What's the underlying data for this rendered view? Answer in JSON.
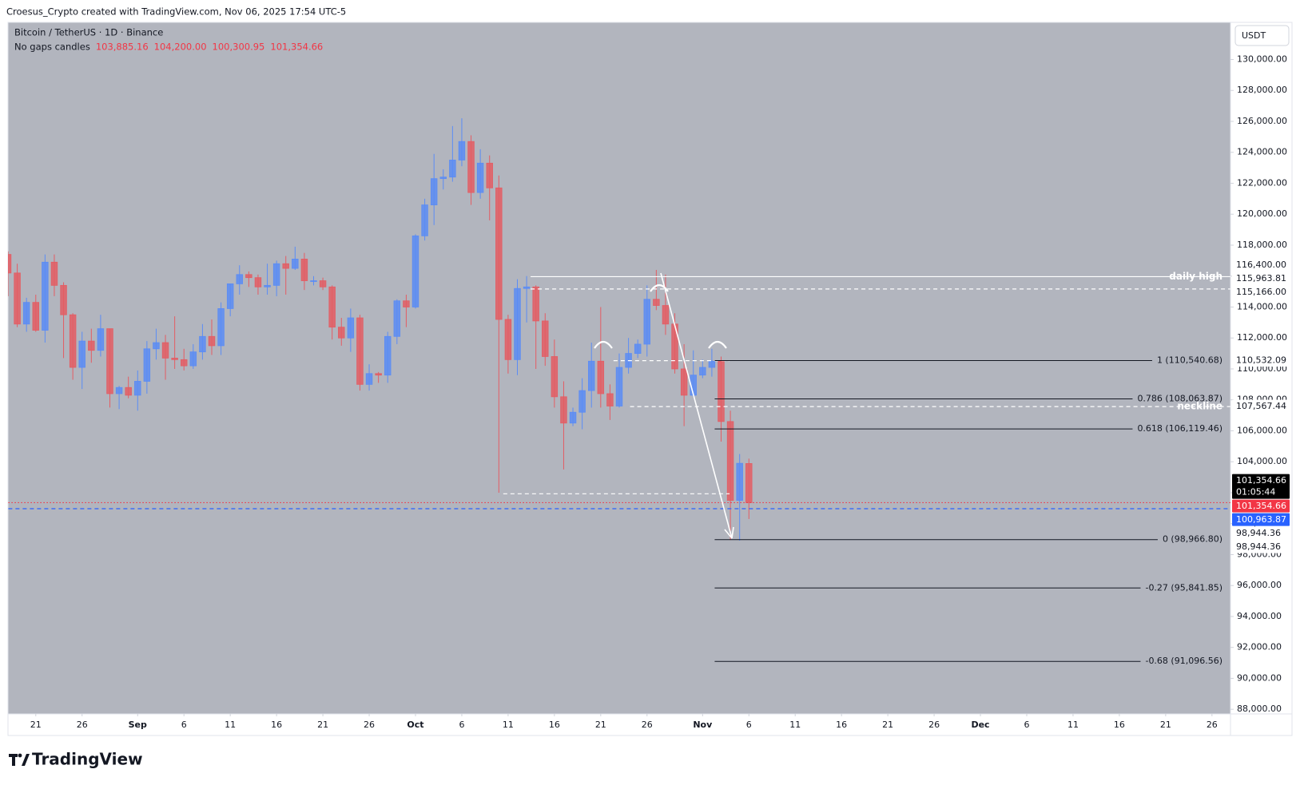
{
  "header": {
    "title": "Croesus_Crypto created with TradingView.com, Nov 06, 2025 17:54 UTC-5"
  },
  "footer": {
    "brand": "TradingView"
  },
  "chart_data": {
    "type": "candlestick",
    "symbol": "Bitcoin / TetherUS · 1D · Binance",
    "legend_label": "No gaps candles",
    "legend_values": [
      "103,885.16",
      "104,200.00",
      "100,300.95",
      "101,354.66"
    ],
    "currency": "USDT",
    "background": "#b2b5be",
    "up_color": "#5b8cf5",
    "down_color": "#e35d64",
    "dates": [
      "Aug 18",
      "Aug 19",
      "Aug 20",
      "Aug 21",
      "Aug 22",
      "Aug 23",
      "Aug 24",
      "Aug 25",
      "Aug 26",
      "Aug 27",
      "Aug 28",
      "Aug 29",
      "Aug 30",
      "Aug 31",
      "Sep 1",
      "Sep 2",
      "Sep 3",
      "Sep 4",
      "Sep 5",
      "Sep 6",
      "Sep 7",
      "Sep 8",
      "Sep 9",
      "Sep 10",
      "Sep 11",
      "Sep 12",
      "Sep 13",
      "Sep 14",
      "Sep 15",
      "Sep 16",
      "Sep 17",
      "Sep 18",
      "Sep 19",
      "Sep 20",
      "Sep 21",
      "Sep 22",
      "Sep 23",
      "Sep 24",
      "Sep 25",
      "Sep 26",
      "Sep 27",
      "Sep 28",
      "Sep 29",
      "Sep 30",
      "Oct 1",
      "Oct 2",
      "Oct 3",
      "Oct 4",
      "Oct 5",
      "Oct 6",
      "Oct 7",
      "Oct 8",
      "Oct 9",
      "Oct 10",
      "Oct 11",
      "Oct 12",
      "Oct 13",
      "Oct 14",
      "Oct 15",
      "Oct 16",
      "Oct 17",
      "Oct 18",
      "Oct 19",
      "Oct 20",
      "Oct 21",
      "Oct 22",
      "Oct 23",
      "Oct 24",
      "Oct 25",
      "Oct 26",
      "Oct 27",
      "Oct 28",
      "Oct 29",
      "Oct 30",
      "Oct 31",
      "Nov 1",
      "Nov 2",
      "Nov 3",
      "Nov 4",
      "Nov 5",
      "Nov 6"
    ],
    "open": [
      117400,
      116200,
      112900,
      114300,
      112500,
      116900,
      115400,
      113500,
      110100,
      111800,
      111200,
      112600,
      108400,
      108800,
      108300,
      109200,
      111300,
      111700,
      110700,
      110600,
      110200,
      111100,
      112100,
      111500,
      113900,
      115500,
      116100,
      115900,
      115300,
      115400,
      116800,
      116500,
      117100,
      115700,
      115700,
      115300,
      112700,
      112000,
      113300,
      109000,
      109700,
      109600,
      112100,
      114400,
      114000,
      118600,
      120600,
      122300,
      122400,
      123500,
      124700,
      121400,
      123300,
      121700,
      113200,
      110600,
      115200,
      115300,
      113100,
      110800,
      108200,
      106500,
      107200,
      108600,
      110500,
      108400,
      107600,
      110100,
      111000,
      111600,
      114500,
      114100,
      112900,
      110000,
      108300,
      109600,
      110100,
      110500,
      106600,
      101500,
      103885.16
    ],
    "high": [
      117600,
      116800,
      114600,
      114800,
      117400,
      117400,
      115600,
      113600,
      112400,
      112600,
      113500,
      112600,
      108900,
      109500,
      109900,
      111800,
      112600,
      112200,
      113400,
      111300,
      111600,
      112900,
      113200,
      114300,
      115500,
      116700,
      116300,
      116100,
      116800,
      117000,
      117300,
      117900,
      117500,
      116000,
      115900,
      115400,
      113300,
      113900,
      113500,
      110300,
      109800,
      112400,
      114500,
      114800,
      118700,
      121000,
      123900,
      122900,
      125700,
      126200,
      125100,
      124200,
      123800,
      122500,
      113500,
      115800,
      116000,
      115400,
      113600,
      111900,
      109200,
      107500,
      109400,
      111700,
      114000,
      109000,
      111000,
      112000,
      111900,
      115400,
      116400,
      116100,
      113600,
      111600,
      111200,
      110600,
      111300,
      110800,
      107300,
      104500,
      104200
    ],
    "low": [
      114700,
      112700,
      112400,
      112400,
      111700,
      114700,
      110700,
      109300,
      108700,
      110400,
      110800,
      107500,
      107400,
      108100,
      107300,
      108400,
      110600,
      109300,
      110000,
      109900,
      110000,
      110600,
      110900,
      110900,
      113400,
      114800,
      115300,
      114800,
      114800,
      114700,
      114800,
      116400,
      115100,
      115400,
      115100,
      111900,
      111500,
      111100,
      108600,
      108600,
      109100,
      109100,
      111600,
      112700,
      113900,
      118300,
      119300,
      121600,
      122100,
      123100,
      120600,
      121000,
      119600,
      102000,
      109700,
      109600,
      113000,
      110000,
      110200,
      107500,
      103500,
      106300,
      106100,
      107500,
      107500,
      106700,
      107500,
      109700,
      110700,
      110800,
      113800,
      112200,
      109700,
      106300,
      108200,
      109400,
      109500,
      105300,
      98944.36,
      98900,
      100300.95
    ],
    "close": [
      116200,
      112900,
      114300,
      112500,
      116900,
      115400,
      113500,
      110100,
      111800,
      111200,
      112600,
      108400,
      108800,
      108300,
      109200,
      111300,
      111700,
      110700,
      110600,
      110200,
      111100,
      112100,
      111500,
      113900,
      115500,
      116100,
      115900,
      115300,
      115400,
      116800,
      116500,
      117100,
      115700,
      115700,
      115300,
      112700,
      112000,
      113300,
      109000,
      109700,
      109600,
      112100,
      114400,
      114000,
      118600,
      120600,
      122300,
      122400,
      123500,
      124700,
      121400,
      123300,
      121700,
      113200,
      110600,
      115200,
      115300,
      113100,
      110800,
      108200,
      106500,
      107200,
      108600,
      110500,
      108400,
      107600,
      110100,
      111000,
      111600,
      114500,
      114100,
      112900,
      110000,
      108300,
      109600,
      110100,
      110500,
      106600,
      101500,
      103900,
      101354.66
    ],
    "xlim": [
      "Aug 18",
      "Dec 28"
    ],
    "xticks": [
      {
        "value": "Aug 21",
        "label": "21"
      },
      {
        "value": "Aug 26",
        "label": "26"
      },
      {
        "value": "Sep 1",
        "label": "Sep"
      },
      {
        "value": "Sep 6",
        "label": "6"
      },
      {
        "value": "Sep 11",
        "label": "11"
      },
      {
        "value": "Sep 16",
        "label": "16"
      },
      {
        "value": "Sep 21",
        "label": "21"
      },
      {
        "value": "Sep 26",
        "label": "26"
      },
      {
        "value": "Oct 1",
        "label": "Oct"
      },
      {
        "value": "Oct 6",
        "label": "6"
      },
      {
        "value": "Oct 11",
        "label": "11"
      },
      {
        "value": "Oct 16",
        "label": "16"
      },
      {
        "value": "Oct 21",
        "label": "21"
      },
      {
        "value": "Oct 26",
        "label": "26"
      },
      {
        "value": "Nov 1",
        "label": "Nov"
      },
      {
        "value": "Nov 6",
        "label": "6"
      },
      {
        "value": "Nov 11",
        "label": "11"
      },
      {
        "value": "Nov 16",
        "label": "16"
      },
      {
        "value": "Nov 21",
        "label": "21"
      },
      {
        "value": "Nov 26",
        "label": "26"
      },
      {
        "value": "Dec 1",
        "label": "Dec"
      },
      {
        "value": "Dec 6",
        "label": "6"
      },
      {
        "value": "Dec 11",
        "label": "11"
      },
      {
        "value": "Dec 16",
        "label": "16"
      },
      {
        "value": "Dec 21",
        "label": "21"
      },
      {
        "value": "Dec 26",
        "label": "26"
      }
    ],
    "ylim": [
      87700,
      132400
    ],
    "yticks": [
      {
        "value": 130000,
        "label": "130,000.00"
      },
      {
        "value": 128000,
        "label": "128,000.00"
      },
      {
        "value": 126000,
        "label": "126,000.00"
      },
      {
        "value": 124000,
        "label": "124,000.00"
      },
      {
        "value": 122000,
        "label": "122,000.00"
      },
      {
        "value": 120000,
        "label": "120,000.00"
      },
      {
        "value": 118000,
        "label": "118,000.00"
      },
      {
        "value": 116000,
        "label": "116,000.00"
      },
      {
        "value": 114000,
        "label": "114,000.00"
      },
      {
        "value": 112000,
        "label": "112,000.00"
      },
      {
        "value": 110000,
        "label": "110,000.00"
      },
      {
        "value": 108000,
        "label": "108,000.00"
      },
      {
        "value": 106000,
        "label": "106,000.00"
      },
      {
        "value": 104000,
        "label": "104,000.00"
      },
      {
        "value": 102000,
        "label": "102,000.00"
      },
      {
        "value": 100000,
        "label": "100,000.00"
      },
      {
        "value": 98000,
        "label": "98,000.00"
      },
      {
        "value": 96000,
        "label": "96,000.00"
      },
      {
        "value": 94000,
        "label": "94,000.00"
      },
      {
        "value": 92000,
        "label": "92,000.00"
      },
      {
        "value": 90000,
        "label": "90,000.00"
      },
      {
        "value": 88000,
        "label": "88,000.00"
      }
    ],
    "grid": false,
    "lines": [
      {
        "value": 115963.81,
        "label": "daily high",
        "style": "solid",
        "color": "#ffffff"
      },
      {
        "value": 115166,
        "style": "dashed",
        "color": "#ffffff"
      },
      {
        "value": 110532.09,
        "style": "dashed",
        "color": "#ffffff"
      },
      {
        "value": 107567.44,
        "label": "neckline",
        "style": "dashed",
        "color": "#ffffff"
      },
      {
        "value": 101930,
        "style": "dashed",
        "color": "#ffffff"
      },
      {
        "value": 101354.66,
        "style": "dotted",
        "color": "#f23645"
      },
      {
        "value": 100963.87,
        "style": "dashed",
        "color": "#2962ff"
      }
    ],
    "fib": [
      {
        "value": 110540.68,
        "label": "1 (110,540.68)"
      },
      {
        "value": 108063.87,
        "label": "0.786 (108,063.87)"
      },
      {
        "value": 106119.46,
        "label": "0.618 (106,119.46)"
      },
      {
        "value": 98966.8,
        "label": "0 (98,966.80)"
      },
      {
        "value": 95841.85,
        "label": "-0.27 (95,841.85)"
      },
      {
        "value": 91096.56,
        "label": "-0.68 (91,096.56)"
      }
    ],
    "fib_color": "#131722",
    "price_tags": [
      {
        "value": 116400,
        "label": "116,400.00",
        "bg": "#ffffff",
        "color": "#131722"
      },
      {
        "value": 115963.81,
        "label": "115,963.81",
        "bg": "#ffffff",
        "color": "#131722"
      },
      {
        "value": 115166,
        "label": "115,166.00",
        "bg": "#ffffff",
        "color": "#131722"
      },
      {
        "value": 110532.09,
        "label": "110,532.09",
        "bg": "#ffffff",
        "color": "#131722"
      },
      {
        "value": 107567.44,
        "label": "107,567.44",
        "bg": "#ffffff",
        "color": "#131722"
      },
      {
        "value": 101354.66,
        "label": "101,354.66",
        "countdown": "01:05:44",
        "bg": "#000000",
        "color": "#ffffff"
      },
      {
        "value": 101354.66,
        "label": "101,354.66",
        "bg": "#f23645",
        "color": "#ffffff"
      },
      {
        "value": 100963.87,
        "label": "100,963.87",
        "bg": "#2962ff",
        "color": "#ffffff"
      },
      {
        "value": 98944.36,
        "label": "98,944.36",
        "bg": "#ffffff",
        "color": "#131722"
      },
      {
        "value": 98944.36,
        "label": "98,944.36",
        "bg": "#ffffff",
        "color": "#131722"
      }
    ]
  }
}
